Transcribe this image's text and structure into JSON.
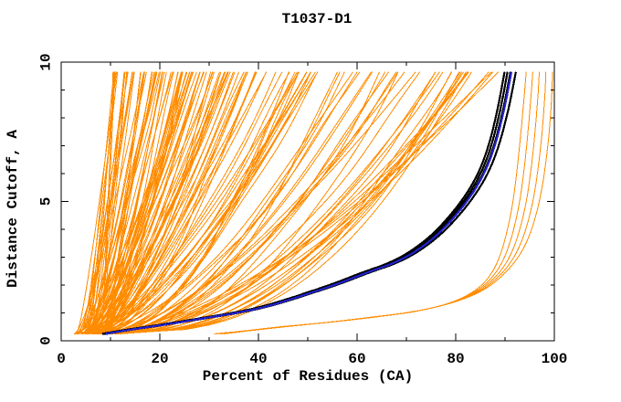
{
  "chart_data": {
    "type": "line",
    "title": "T1037-D1",
    "xlabel": "Percent of Residues (CA)",
    "ylabel": "Distance Cutoff, A",
    "xlim": [
      0,
      100
    ],
    "ylim": [
      0,
      10
    ],
    "x_major_ticks": [
      0,
      20,
      40,
      60,
      80,
      100
    ],
    "x_minor_ticks": [
      10,
      30,
      50,
      70,
      90
    ],
    "y_major_ticks": [
      0,
      5,
      10
    ],
    "y_minor_ticks": [
      1,
      2,
      3,
      4,
      6,
      7,
      8,
      9
    ],
    "grid": false,
    "legend": false,
    "colors": {
      "model_cloud": "#ff8c00",
      "best_models": "#000000",
      "selected_model": "#2222cc",
      "frame": "#000000",
      "background": "#ffffff"
    },
    "series": [
      {
        "name": "model-cloud",
        "description": "~140 orange per-model GDT curves fanning from lower-left to top",
        "color_key": "model_cloud",
        "count": 140,
        "seed": 20371,
        "y_start": 0.25,
        "y_end": 9.65,
        "x_start_range": [
          2.5,
          8.0
        ],
        "x_top_bands": [
          {
            "weight": 0.52,
            "range": [
              10,
              34
            ]
          },
          {
            "weight": 0.28,
            "range": [
              34,
              64
            ]
          },
          {
            "weight": 0.14,
            "range": [
              64,
              84
            ]
          },
          {
            "weight": 0.06,
            "range": [
              80,
              89
            ]
          }
        ]
      },
      {
        "name": "selected-model-curve",
        "color_key": "selected_model",
        "points": [
          [
            9,
            0.25
          ],
          [
            14,
            0.4
          ],
          [
            20,
            0.55
          ],
          [
            27,
            0.75
          ],
          [
            34,
            0.95
          ],
          [
            40,
            1.15
          ],
          [
            46,
            1.45
          ],
          [
            52,
            1.8
          ],
          [
            57,
            2.1
          ],
          [
            62,
            2.45
          ],
          [
            67,
            2.75
          ],
          [
            71,
            3.1
          ],
          [
            75,
            3.6
          ],
          [
            78,
            4.1
          ],
          [
            81,
            4.7
          ],
          [
            83.5,
            5.3
          ],
          [
            85.5,
            5.9
          ],
          [
            87,
            6.5
          ],
          [
            88.3,
            7.2
          ],
          [
            89.3,
            7.9
          ],
          [
            90.2,
            8.6
          ],
          [
            91.3,
            9.65
          ]
        ]
      },
      {
        "name": "best-model-curves",
        "color_key": "best_models",
        "base": "selected-model-curve",
        "offsets": [
          {
            "dx_bottom": -0.7,
            "dx_top": -1.4
          },
          {
            "dx_bottom": -0.4,
            "dx_top": -0.8
          },
          {
            "dx_bottom": -0.15,
            "dx_top": -0.2
          },
          {
            "dx_bottom": 0.15,
            "dx_top": 0.9
          }
        ]
      },
      {
        "name": "right-outlier-curves",
        "description": "small group of models that stay at low cutoff until ~90-100%",
        "color_key": "model_cloud",
        "inner": [
          [
            31,
            0.25
          ],
          [
            37,
            0.35
          ],
          [
            44,
            0.5
          ],
          [
            52,
            0.62
          ],
          [
            59,
            0.75
          ],
          [
            66,
            0.9
          ],
          [
            72,
            1.05
          ],
          [
            77,
            1.25
          ],
          [
            81,
            1.5
          ],
          [
            84,
            1.8
          ],
          [
            86.5,
            2.2
          ],
          [
            88.5,
            2.8
          ],
          [
            90,
            3.6
          ],
          [
            91.5,
            4.8
          ],
          [
            92.5,
            6.2
          ],
          [
            93.3,
            7.6
          ],
          [
            94,
            9.0
          ],
          [
            94.3,
            9.65
          ]
        ],
        "outer": [
          [
            33,
            0.25
          ],
          [
            40,
            0.4
          ],
          [
            48,
            0.55
          ],
          [
            56,
            0.7
          ],
          [
            63,
            0.85
          ],
          [
            70,
            1.0
          ],
          [
            76,
            1.2
          ],
          [
            81,
            1.45
          ],
          [
            85,
            1.75
          ],
          [
            88,
            2.1
          ],
          [
            91,
            2.6
          ],
          [
            93.5,
            3.2
          ],
          [
            95.5,
            4.0
          ],
          [
            97.3,
            5.2
          ],
          [
            98.6,
            6.8
          ],
          [
            99.3,
            8.2
          ],
          [
            99.6,
            9.2
          ],
          [
            99.6,
            9.65
          ]
        ],
        "spreads": [
          0,
          0.25,
          0.5,
          0.75,
          1
        ]
      }
    ]
  }
}
